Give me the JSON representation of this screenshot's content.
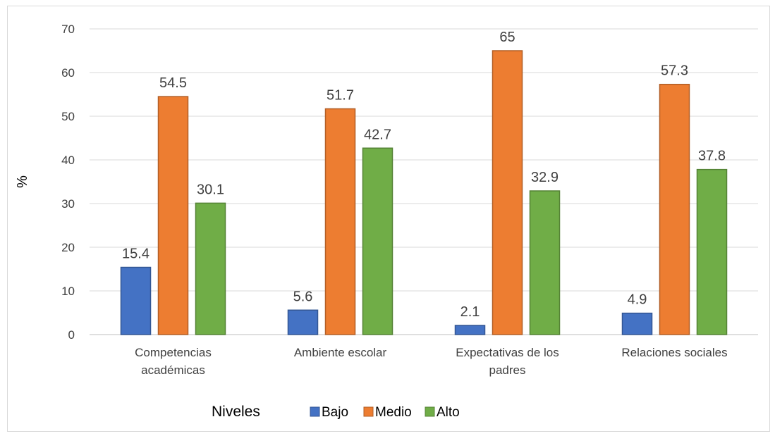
{
  "chart_data": {
    "type": "bar",
    "ylabel": "%",
    "ylim": [
      0,
      70
    ],
    "yticks": [
      0,
      10,
      20,
      30,
      40,
      50,
      60,
      70
    ],
    "grid": true,
    "legend_title": "Niveles",
    "legend_position": "bottom",
    "categories": [
      [
        "Competencias",
        "académicas"
      ],
      [
        "Ambiente escolar"
      ],
      [
        "Expectativas de los",
        "padres"
      ],
      [
        "Relaciones sociales"
      ]
    ],
    "series": [
      {
        "name": "Bajo",
        "color": "#4472c4",
        "values": [
          15.4,
          5.6,
          2.1,
          4.9
        ]
      },
      {
        "name": "Medio",
        "color": "#ed7d31",
        "values": [
          54.5,
          51.7,
          65,
          57.3
        ]
      },
      {
        "name": "Alto",
        "color": "#70ad47",
        "values": [
          30.1,
          42.7,
          32.9,
          37.8
        ]
      }
    ]
  }
}
